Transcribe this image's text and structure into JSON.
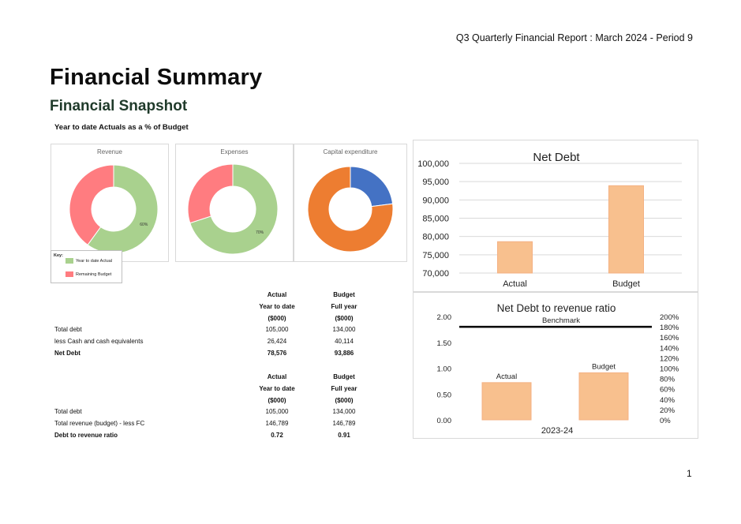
{
  "header": {
    "report_line": "Q3 Quarterly Financial Report : March 2024 - Period 9"
  },
  "page": {
    "title": "Financial Summary",
    "section": "Financial Snapshot",
    "subsection": "Year to date Actuals as a % of Budget",
    "number": "1"
  },
  "donuts": [
    {
      "title": "Revenue",
      "actual_pct": 60,
      "label": "60%",
      "colors": [
        "#a9d18e",
        "#ff7c80"
      ]
    },
    {
      "title": "Expenses",
      "actual_pct": 70,
      "label": "70%",
      "colors": [
        "#a9d18e",
        "#ff7c80"
      ]
    },
    {
      "title": "Capital expenditure",
      "actual_pct": 23,
      "label": "",
      "colors": [
        "#4472c4",
        "#ed7d31"
      ]
    }
  ],
  "key": {
    "title": "Key:",
    "items": [
      {
        "label": "Year to date Actual",
        "color": "#a9d18e"
      },
      {
        "label": "Remaining Budget",
        "color": "#ff7c80"
      }
    ]
  },
  "net_debt_table": {
    "header1": [
      "Actual",
      "Budget"
    ],
    "header2": [
      "Year to date",
      "Full year"
    ],
    "header3": [
      "($000)",
      "($000)"
    ],
    "rows": [
      {
        "label": "Total debt",
        "actual": "105,000",
        "budget": "134,000"
      },
      {
        "label": "less Cash and cash equivalents",
        "actual": "26,424",
        "budget": "40,114"
      },
      {
        "label": "Net Debt",
        "actual": "78,576",
        "budget": "93,886"
      }
    ]
  },
  "ratio_table": {
    "header1": [
      "Actual",
      "Budget"
    ],
    "header2": [
      "Year to date",
      "Full year"
    ],
    "header3": [
      "($000)",
      "($000)"
    ],
    "rows": [
      {
        "label": "Total debt",
        "actual": "105,000",
        "budget": "134,000"
      },
      {
        "label": "Total revenue (budget) - less FC",
        "actual": "146,789",
        "budget": "146,789"
      },
      {
        "label": "Debt to revenue ratio",
        "actual": "0.72",
        "budget": "0.91"
      }
    ]
  },
  "chart_data": [
    {
      "type": "bar",
      "title": "Net Debt",
      "categories": [
        "Actual",
        "Budget"
      ],
      "values": [
        78576,
        93886
      ],
      "ylim": [
        70000,
        100000
      ],
      "yticks": [
        "100,000",
        "95,000",
        "90,000",
        "85,000",
        "80,000",
        "75,000",
        "70,000"
      ],
      "grid": true,
      "bar_color": "#f8c08e"
    },
    {
      "type": "bar",
      "title": "Net Debt to revenue ratio",
      "categories": [
        "2023-24"
      ],
      "series": [
        {
          "name": "Actual",
          "values": [
            0.72
          ]
        },
        {
          "name": "Budget",
          "values": [
            0.91
          ]
        }
      ],
      "benchmark": {
        "label": "Benchmark",
        "value": 1.8
      },
      "ylim_left": [
        0,
        2
      ],
      "yticks_left": [
        "2.00",
        "1.50",
        "1.00",
        "0.50",
        "0.00"
      ],
      "yticks_right": [
        "200%",
        "180%",
        "160%",
        "140%",
        "120%",
        "100%",
        "80%",
        "60%",
        "40%",
        "20%",
        "0%"
      ],
      "grid": false,
      "bar_color": "#f8c08e"
    }
  ]
}
